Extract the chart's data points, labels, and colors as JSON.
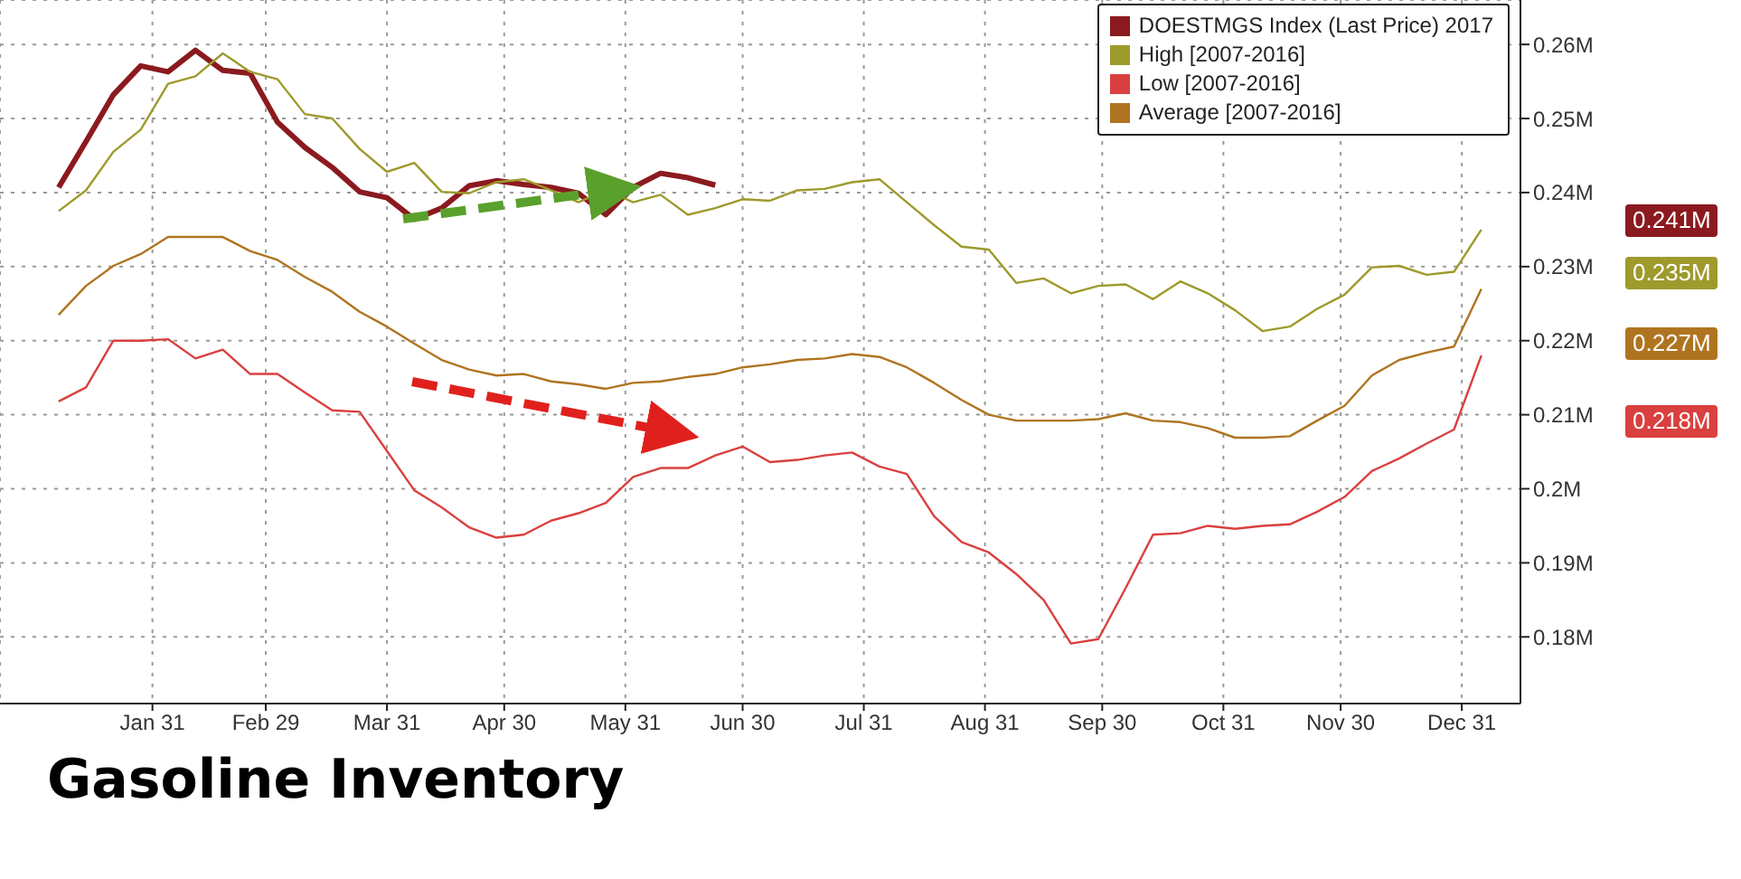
{
  "chart_data": {
    "type": "line",
    "title": "Gasoline Inventory",
    "x": [
      "2016-01-07",
      "2016-01-14",
      "2016-01-21",
      "2016-01-28",
      "2016-02-04",
      "2016-02-11",
      "2016-02-18",
      "2016-02-25",
      "2016-03-03",
      "2016-03-10",
      "2016-03-17",
      "2016-03-24",
      "2016-03-31",
      "2016-04-07",
      "2016-04-14",
      "2016-04-21",
      "2016-04-28",
      "2016-05-05",
      "2016-05-12",
      "2016-05-19",
      "2016-05-26",
      "2016-06-02",
      "2016-06-09",
      "2016-06-16",
      "2016-06-23",
      "2016-06-30",
      "2016-07-07",
      "2016-07-14",
      "2016-07-21",
      "2016-07-28",
      "2016-08-04",
      "2016-08-11",
      "2016-08-18",
      "2016-08-25",
      "2016-09-01",
      "2016-09-08",
      "2016-09-15",
      "2016-09-22",
      "2016-09-29",
      "2016-10-06",
      "2016-10-13",
      "2016-10-20",
      "2016-10-27",
      "2016-11-03",
      "2016-11-10",
      "2016-11-17",
      "2016-11-24",
      "2016-12-01",
      "2016-12-08",
      "2016-12-15",
      "2016-12-22",
      "2016-12-29",
      "2017-01-05"
    ],
    "series": [
      {
        "name": "DOESTMGS Index (Last Price) 2017",
        "color": "#8b1a1f",
        "x": [
          "2016-01-07",
          "2016-01-14",
          "2016-01-21",
          "2016-01-28",
          "2016-02-04",
          "2016-02-11",
          "2016-02-18",
          "2016-02-25",
          "2016-03-03",
          "2016-03-10",
          "2016-03-17",
          "2016-03-24",
          "2016-03-31",
          "2016-04-07",
          "2016-04-14",
          "2016-04-21",
          "2016-04-28",
          "2016-05-05",
          "2016-05-12",
          "2016-05-19",
          "2016-05-26",
          "2016-06-02",
          "2016-06-09",
          "2016-06-16",
          "2016-06-23"
        ],
        "values": [
          0.2407,
          0.2469,
          0.2532,
          0.2571,
          0.2563,
          0.2592,
          0.2565,
          0.2561,
          0.2495,
          0.2461,
          0.2434,
          0.2401,
          0.2393,
          0.2364,
          0.2379,
          0.2409,
          0.2416,
          0.2411,
          0.2407,
          0.2399,
          0.237,
          0.2407,
          0.2426,
          0.242,
          0.241
        ]
      },
      {
        "name": "High [2007-2016]",
        "color": "#9e9a2c",
        "values": [
          0.2375,
          0.2403,
          0.2455,
          0.2485,
          0.2547,
          0.2557,
          0.2588,
          0.2563,
          0.2553,
          0.2506,
          0.25,
          0.2459,
          0.2428,
          0.244,
          0.2401,
          0.2399,
          0.2414,
          0.2418,
          0.2403,
          0.2387,
          0.2403,
          0.2387,
          0.2397,
          0.237,
          0.2379,
          0.2391,
          0.2389,
          0.2403,
          0.2405,
          0.2414,
          0.2418,
          0.2387,
          0.2356,
          0.2327,
          0.2323,
          0.2278,
          0.2284,
          0.2264,
          0.2274,
          0.2276,
          0.2256,
          0.228,
          0.2264,
          0.2241,
          0.2213,
          0.2219,
          0.2243,
          0.2262,
          0.2299,
          0.2301,
          0.2289,
          0.2293,
          0.235
        ]
      },
      {
        "name": "Low [2007-2016]",
        "color": "#d9403f",
        "values": [
          0.2118,
          0.2137,
          0.22,
          0.22,
          0.2202,
          0.2176,
          0.2188,
          0.2155,
          0.2155,
          0.213,
          0.2106,
          0.2104,
          0.2051,
          0.1998,
          0.1975,
          0.1948,
          0.1934,
          0.1938,
          0.1957,
          0.1967,
          0.1981,
          0.2016,
          0.2028,
          0.2028,
          0.2045,
          0.2057,
          0.2036,
          0.2039,
          0.2045,
          0.2049,
          0.203,
          0.202,
          0.1963,
          0.1928,
          0.1914,
          0.1885,
          0.185,
          0.1791,
          0.1797,
          0.1866,
          0.1938,
          0.194,
          0.195,
          0.1946,
          0.195,
          0.1952,
          0.1969,
          0.1989,
          0.2024,
          0.2041,
          0.2061,
          0.208,
          0.218
        ]
      },
      {
        "name": "Average [2007-2016]",
        "color": "#b07420",
        "values": [
          0.2235,
          0.2274,
          0.2301,
          0.2317,
          0.234,
          0.234,
          0.234,
          0.2321,
          0.2309,
          0.2286,
          0.2266,
          0.2239,
          0.2219,
          0.2196,
          0.2174,
          0.2161,
          0.2153,
          0.2155,
          0.2145,
          0.2141,
          0.2135,
          0.2143,
          0.2145,
          0.2151,
          0.2155,
          0.2164,
          0.2168,
          0.2174,
          0.2176,
          0.2182,
          0.2178,
          0.2164,
          0.2143,
          0.212,
          0.21,
          0.2092,
          0.2092,
          0.2092,
          0.2094,
          0.2102,
          0.2092,
          0.209,
          0.2082,
          0.2069,
          0.2069,
          0.2071,
          0.2092,
          0.2112,
          0.2153,
          0.2174,
          0.2184,
          0.2192,
          0.227
        ]
      }
    ],
    "xlim": [
      "2015-12-23",
      "2017-01-15"
    ],
    "xticks": [
      {
        "value": "2016-01-31",
        "label": "Jan 31"
      },
      {
        "value": "2016-02-29",
        "label": "Feb 29"
      },
      {
        "value": "2016-03-31",
        "label": "Mar 31"
      },
      {
        "value": "2016-04-30",
        "label": "Apr 30"
      },
      {
        "value": "2016-05-31",
        "label": "May 31"
      },
      {
        "value": "2016-06-30",
        "label": "Jun 30"
      },
      {
        "value": "2016-07-31",
        "label": "Jul 31"
      },
      {
        "value": "2016-08-31",
        "label": "Aug 31"
      },
      {
        "value": "2016-09-30",
        "label": "Sep 30"
      },
      {
        "value": "2016-10-31",
        "label": "Oct 31"
      },
      {
        "value": "2016-11-30",
        "label": "Nov 30"
      },
      {
        "value": "2016-12-31",
        "label": "Dec 31"
      }
    ],
    "ylim": [
      0.171,
      0.266
    ],
    "yticks": [
      {
        "value": 0.18,
        "label": "0.18M"
      },
      {
        "value": 0.19,
        "label": "0.19M"
      },
      {
        "value": 0.2,
        "label": "0.2M"
      },
      {
        "value": 0.21,
        "label": "0.21M"
      },
      {
        "value": 0.22,
        "label": "0.22M"
      },
      {
        "value": 0.23,
        "label": "0.23M"
      },
      {
        "value": 0.24,
        "label": "0.24M"
      },
      {
        "value": 0.25,
        "label": "0.25M"
      },
      {
        "value": 0.26,
        "label": "0.26M"
      }
    ],
    "annotations": [
      "0.241M",
      "0.235M",
      "0.218M",
      "0.227M"
    ],
    "grid": true,
    "legend": "top right",
    "marker": "none",
    "line_style": "solid"
  }
}
